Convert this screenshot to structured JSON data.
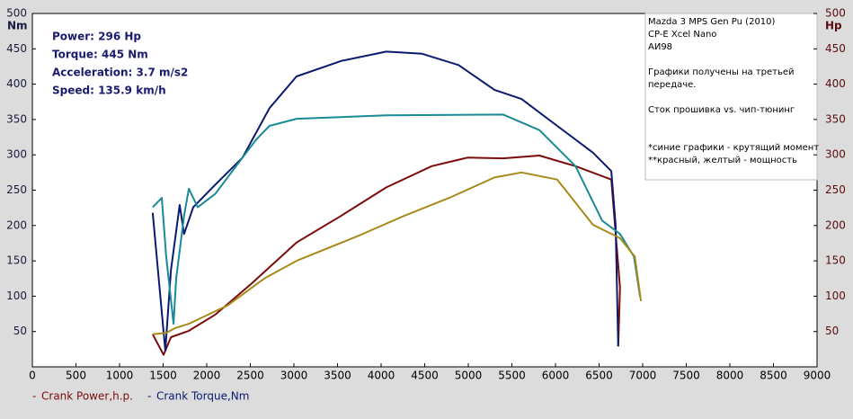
{
  "chart_data": {
    "type": "line",
    "y_label": "Nm",
    "y2_label": "Hp",
    "annotations": [
      "Power: 296 Hp",
      "Torque: 445 Nm",
      "Acceleration: 3.7 m/s2",
      "Speed: 135.9 km/h"
    ],
    "note_lines": [
      "Mazda 3 MPS Gen Pu (2010)",
      "CP-E Xcel Nano",
      "АИ98",
      "",
      "Графики получены на третьей",
      "передаче.",
      "",
      "Сток прошивка vs. чип-тюнинг",
      "",
      "",
      "*синие графики - крутящий момент",
      "**красный, желтый - мощность"
    ],
    "xlim": [
      0,
      9000
    ],
    "xticks": [
      0,
      500,
      1000,
      1500,
      2000,
      2500,
      3000,
      3500,
      4000,
      4500,
      5000,
      5500,
      6000,
      6500,
      7000,
      7500,
      8000,
      8500,
      9000
    ],
    "ylim": [
      0,
      500
    ],
    "yticks": [
      50,
      100,
      150,
      200,
      250,
      300,
      350,
      400,
      450,
      500
    ],
    "y2lim": [
      0,
      500
    ],
    "y2ticks": [
      50,
      100,
      150,
      200,
      250,
      300,
      350,
      400,
      450,
      500
    ],
    "series": [
      {
        "name": "Crank Power,h.p.",
        "color": "#7a0c0c",
        "axis": "y2",
        "x": [
          1380,
          1505,
          1590,
          1795,
          2100,
          2515,
          3030,
          3545,
          4060,
          4580,
          4990,
          5400,
          5815,
          6230,
          6640,
          6740,
          6720
        ],
        "values": [
          46,
          17,
          42,
          51,
          74,
          118,
          176,
          214,
          254,
          284,
          296,
          295,
          299,
          284,
          265,
          112,
          29
        ]
      },
      {
        "name": "Crank Torque,Nm",
        "color": "#0a1a6e",
        "x": [
          1380,
          1525,
          1590,
          1690,
          1740,
          1845,
          2100,
          2410,
          2720,
          3030,
          3545,
          4060,
          4470,
          4890,
          5300,
          5610,
          6020,
          6430,
          6640,
          6690,
          6720
        ],
        "values": [
          218,
          23,
          137,
          229,
          188,
          226,
          258,
          296,
          366,
          411,
          433,
          446,
          443,
          427,
          392,
          379,
          341,
          303,
          277,
          201,
          29
        ]
      },
      {
        "color": "#1a8a96",
        "x": [
          1380,
          1485,
          1535,
          1620,
          1650,
          1740,
          1795,
          1897,
          2100,
          2410,
          2570,
          2720,
          3030,
          4060,
          5400,
          5815,
          6230,
          6535,
          6740,
          6900,
          6970
        ],
        "values": [
          226,
          239,
          156,
          61,
          125,
          214,
          252,
          226,
          245,
          296,
          322,
          341,
          351,
          356,
          357,
          335,
          284,
          207,
          188,
          156,
          99
        ]
      },
      {
        "color": "#a88a1a",
        "axis": "y2",
        "x": [
          1380,
          1535,
          1640,
          1795,
          2240,
          2660,
          3030,
          3750,
          4270,
          4780,
          5300,
          5610,
          6020,
          6430,
          6740,
          6910,
          6980
        ],
        "values": [
          46,
          48,
          55,
          61,
          87,
          125,
          150,
          186,
          214,
          239,
          268,
          275,
          265,
          201,
          182,
          156,
          93
        ]
      }
    ]
  }
}
